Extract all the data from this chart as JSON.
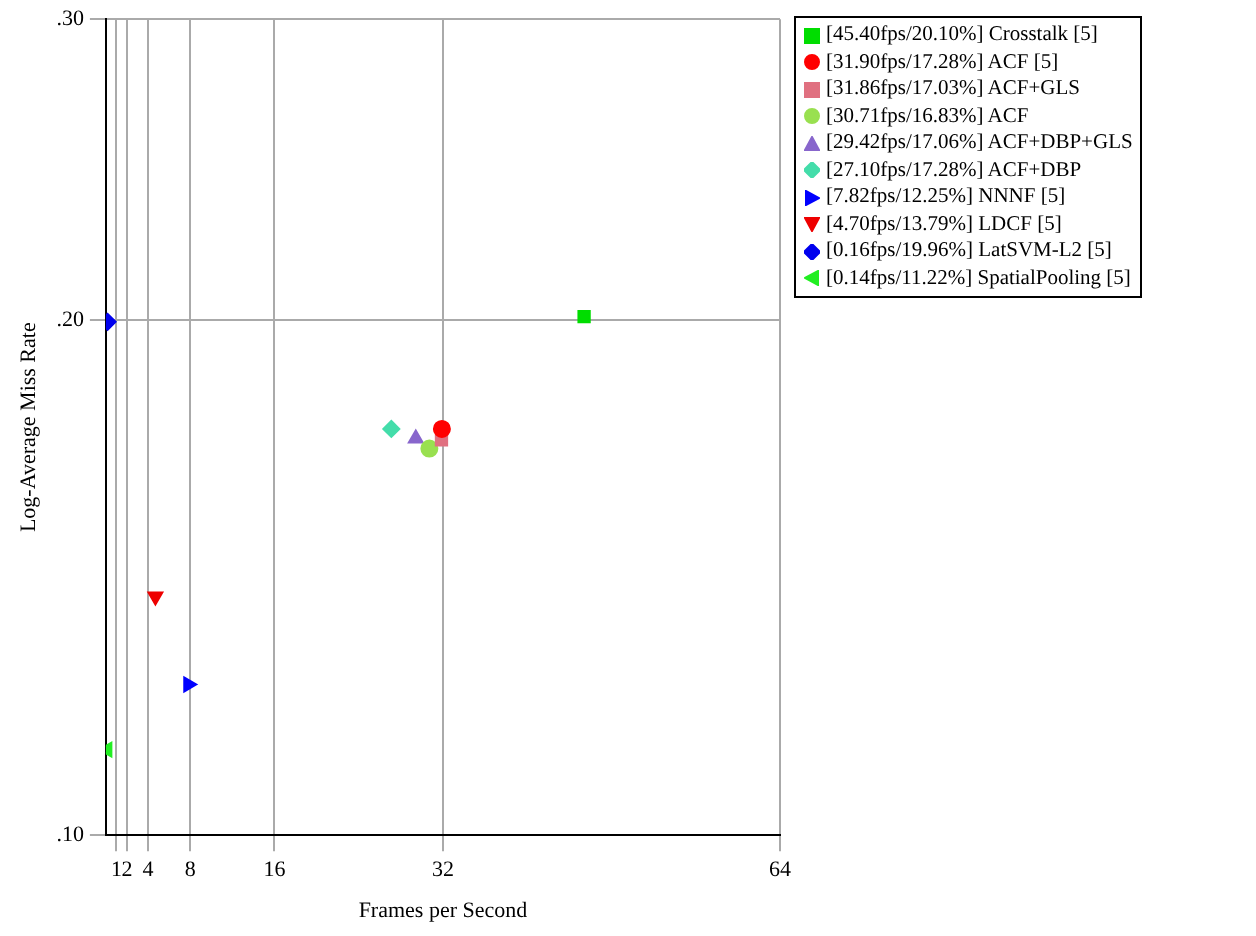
{
  "chart_data": {
    "type": "scatter",
    "xlabel": "Frames per Second",
    "ylabel": "Log-Average Miss Rate",
    "log": "y",
    "grid": true,
    "legend": "top right",
    "xlim": [
      0,
      64
    ],
    "ylim": [
      0.1,
      0.3
    ],
    "xticks": [
      1,
      2,
      4,
      8,
      16,
      32,
      64
    ],
    "yticks": [
      {
        "value": 0.1,
        "label": ".10"
      },
      {
        "value": 0.2,
        "label": ".20"
      },
      {
        "value": 0.3,
        "label": ".30"
      }
    ],
    "series": [
      {
        "name": "[45.40fps/20.10%] Crosstalk [5]",
        "color": "#00dd00",
        "marker": "square",
        "x": [
          45.4
        ],
        "values": [
          0.201
        ]
      },
      {
        "name": "[31.90fps/17.28%] ACF [5]",
        "color": "#ff0000",
        "marker": "circle",
        "x": [
          31.9
        ],
        "values": [
          0.1728
        ]
      },
      {
        "name": "[31.86fps/17.03%] ACF+GLS",
        "color": "#e07080",
        "marker": "square",
        "x": [
          31.86
        ],
        "values": [
          0.1703
        ]
      },
      {
        "name": "[30.71fps/16.83%] ACF",
        "color": "#99e050",
        "marker": "circle",
        "x": [
          30.71
        ],
        "values": [
          0.1683
        ]
      },
      {
        "name": "[29.42fps/17.06%] ACF+DBP+GLS",
        "color": "#8866cc",
        "marker": "triangle",
        "x": [
          29.42
        ],
        "values": [
          0.1706
        ]
      },
      {
        "name": "[27.10fps/17.28%] ACF+DBP",
        "color": "#44ddaa",
        "marker": "diamond",
        "x": [
          27.1
        ],
        "values": [
          0.1728
        ]
      },
      {
        "name": "[7.82fps/12.25%] NNNF [5]",
        "color": "#0000ff",
        "marker": "triangle-right",
        "x": [
          7.82
        ],
        "values": [
          0.1225
        ]
      },
      {
        "name": "[4.70fps/13.79%] LDCF [5]",
        "color": "#ee0000",
        "marker": "triangle-down",
        "x": [
          4.7
        ],
        "values": [
          0.1379
        ]
      },
      {
        "name": "[0.16fps/19.96%] LatSVM-L2 [5]",
        "color": "#0000ee",
        "marker": "diamond",
        "x": [
          0.16
        ],
        "values": [
          0.1996
        ]
      },
      {
        "name": "[0.14fps/11.22%] SpatialPooling [5]",
        "color": "#22ee22",
        "marker": "triangle-left",
        "x": [
          0.14
        ],
        "values": [
          0.1122
        ]
      }
    ]
  }
}
